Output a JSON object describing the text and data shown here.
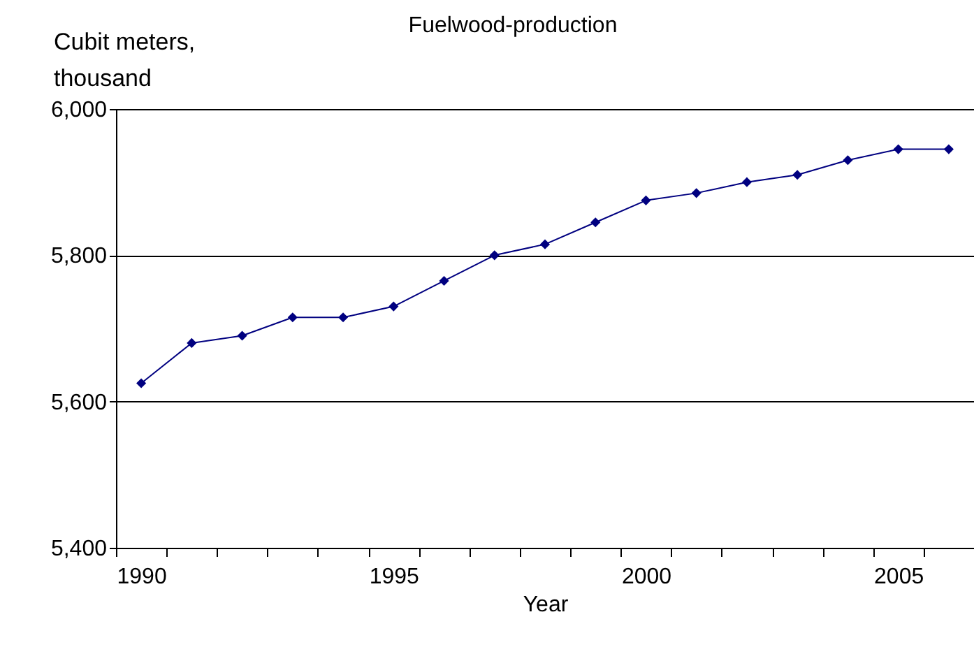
{
  "chart_data": {
    "type": "line",
    "title": "Fuelwood-production",
    "xlabel": "Year",
    "ylabel": "Cubit meters,\nthousand",
    "categories": [
      "1990",
      null,
      null,
      null,
      null,
      "1995",
      null,
      null,
      null,
      null,
      "2000",
      null,
      null,
      null,
      null,
      "2005",
      null
    ],
    "series": [
      {
        "color": "#000080",
        "values": [
          5625,
          5680,
          5690,
          5715,
          5715,
          5730,
          5765,
          5800,
          5815,
          5845,
          5875,
          5885,
          5900,
          5910,
          5930,
          5945,
          5945
        ]
      }
    ],
    "ylim": [
      5400,
      6000
    ],
    "yticks": [
      {
        "value": 5400,
        "label": "5,400"
      },
      {
        "value": 5600,
        "label": "5,600"
      },
      {
        "value": 5800,
        "label": "5,800"
      },
      {
        "value": 6000,
        "label": "6,000"
      }
    ],
    "grid": "y",
    "marker": "diamond",
    "line_style": "solid"
  }
}
